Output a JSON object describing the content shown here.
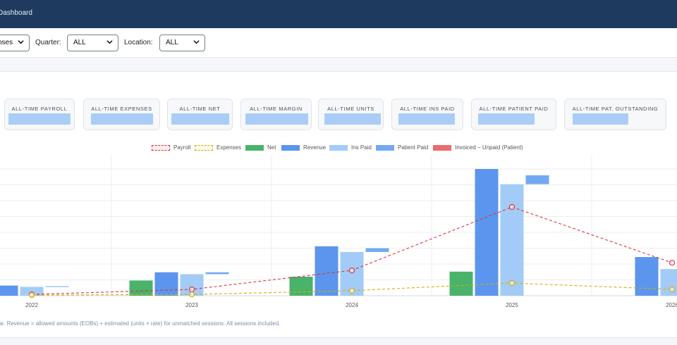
{
  "header": {
    "title": "Dashboard"
  },
  "filters": {
    "first_select_value": "nses",
    "quarter_label": "Quarter:",
    "quarter_value": "ALL",
    "location_label": "Location:",
    "location_value": "ALL"
  },
  "cards": [
    {
      "label": "ALL-TIME PAYROLL"
    },
    {
      "label": "ALL-TIME EXPENSES"
    },
    {
      "label": "ALL-TIME NET"
    },
    {
      "label": "ALL-TIME MARGIN"
    },
    {
      "label": "ALL-TIME UNITS"
    },
    {
      "label": "ALL-TIME INS PAID"
    },
    {
      "label": "ALL-TIME PATIENT PAID"
    },
    {
      "label": "ALL-TIME PAT. OUTSTANDING"
    }
  ],
  "legend": {
    "payroll": "Payroll",
    "expenses": "Expenses",
    "net": "Net",
    "revenue": "Revenue",
    "ins_paid": "Ins Paid",
    "patient_paid": "Patient Paid",
    "unpaid": "Invoiced − Unpaid (Patient)"
  },
  "colors": {
    "payroll": "#d9363e",
    "expenses": "#d4b000",
    "net": "#49b36b",
    "revenue": "#5b95ee",
    "ins_paid": "#a3cbf7",
    "patient_paid": "#74a9f2",
    "unpaid": "#ec6b6e"
  },
  "chart_data": {
    "type": "bar",
    "categories": [
      "2022",
      "2023",
      "2024",
      "2025",
      "2026"
    ],
    "ylim": [
      0,
      100
    ],
    "series": [
      {
        "name": "Net",
        "kind": "bar",
        "values": [
          null,
          12,
          15,
          19,
          0
        ]
      },
      {
        "name": "Revenue",
        "kind": "bar",
        "values": [
          8,
          18.5,
          39,
          100,
          30.5
        ]
      },
      {
        "name": "Ins Paid",
        "kind": "bar",
        "values": [
          7,
          17,
          34.5,
          88,
          21
        ]
      },
      {
        "name": "Patient Paid",
        "kind": "bar",
        "values": [
          0.5,
          1.5,
          3,
          7,
          null
        ]
      },
      {
        "name": "Invoiced − Unpaid (Patient)",
        "kind": "bar",
        "values": [
          0,
          0,
          0,
          0,
          0
        ]
      },
      {
        "name": "Payroll",
        "kind": "line",
        "values": [
          1,
          5,
          20,
          70,
          26
        ]
      },
      {
        "name": "Expenses",
        "kind": "line",
        "values": [
          0.5,
          1,
          4,
          10,
          5
        ]
      }
    ],
    "grid": true
  },
  "footnote": "ear. Revenue = allowed amounts (EOBs) + estimated (units × rate) for unmatched sessions. All sessions included."
}
